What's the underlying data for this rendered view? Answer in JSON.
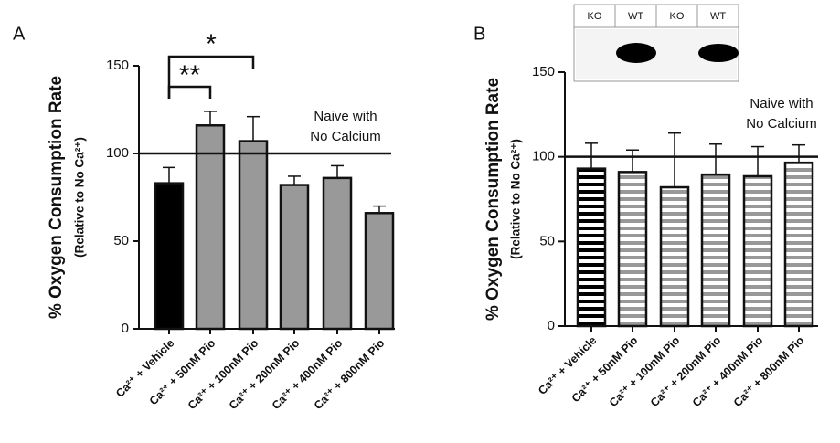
{
  "chart_data": [
    {
      "type": "bar",
      "panel_label": "A",
      "title": "% Oxygen Consumption Rate",
      "subtitle": "(Relative to No Ca²⁺)",
      "categories": [
        "Ca²⁺ + Vehicle",
        "Ca²⁺ + 50nM Pio",
        "Ca²⁺ + 100nM Pio",
        "Ca²⁺ + 200nM Pio",
        "Ca²⁺ + 400nM Pio",
        "Ca²⁺ + 800nM Pio"
      ],
      "values": [
        83,
        116,
        107,
        82,
        86,
        66
      ],
      "errors": [
        9,
        8,
        14,
        5,
        7,
        4
      ],
      "colors": [
        "#000000",
        "#999999",
        "#999999",
        "#999999",
        "#999999",
        "#999999"
      ],
      "ylim": [
        0,
        150
      ],
      "yticks": [
        0,
        50,
        100,
        150
      ],
      "reference_line": 100,
      "reference_label": [
        "Naive with",
        "No Calcium"
      ],
      "annotations": [
        "**",
        "*"
      ]
    },
    {
      "type": "striped-bar",
      "panel_label": "B",
      "title": "% Oxygen Consumption Rate",
      "subtitle": "(Relative to No Ca²⁺)",
      "categories": [
        "Ca²⁺ + Vehicle",
        "Ca²⁺ + 50nM Pio",
        "Ca²⁺ + 100nM Pio",
        "Ca²⁺ + 200nM Pio",
        "Ca²⁺ + 400nM Pio",
        "Ca²⁺ + 800nM Pio"
      ],
      "values": [
        93,
        91,
        82,
        89.5,
        88.5,
        96.5
      ],
      "errors": [
        15,
        13,
        32,
        18,
        17.5,
        10.5
      ],
      "colors": [
        "#000000",
        "#999999",
        "#999999",
        "#999999",
        "#999999",
        "#999999"
      ],
      "ylim": [
        0,
        150
      ],
      "yticks": [
        0,
        50,
        100,
        150
      ],
      "reference_line": 100,
      "reference_label": [
        "Naive with",
        "No Calcium"
      ],
      "inset_lanes": [
        "KO",
        "WT",
        "KO",
        "WT"
      ]
    }
  ]
}
